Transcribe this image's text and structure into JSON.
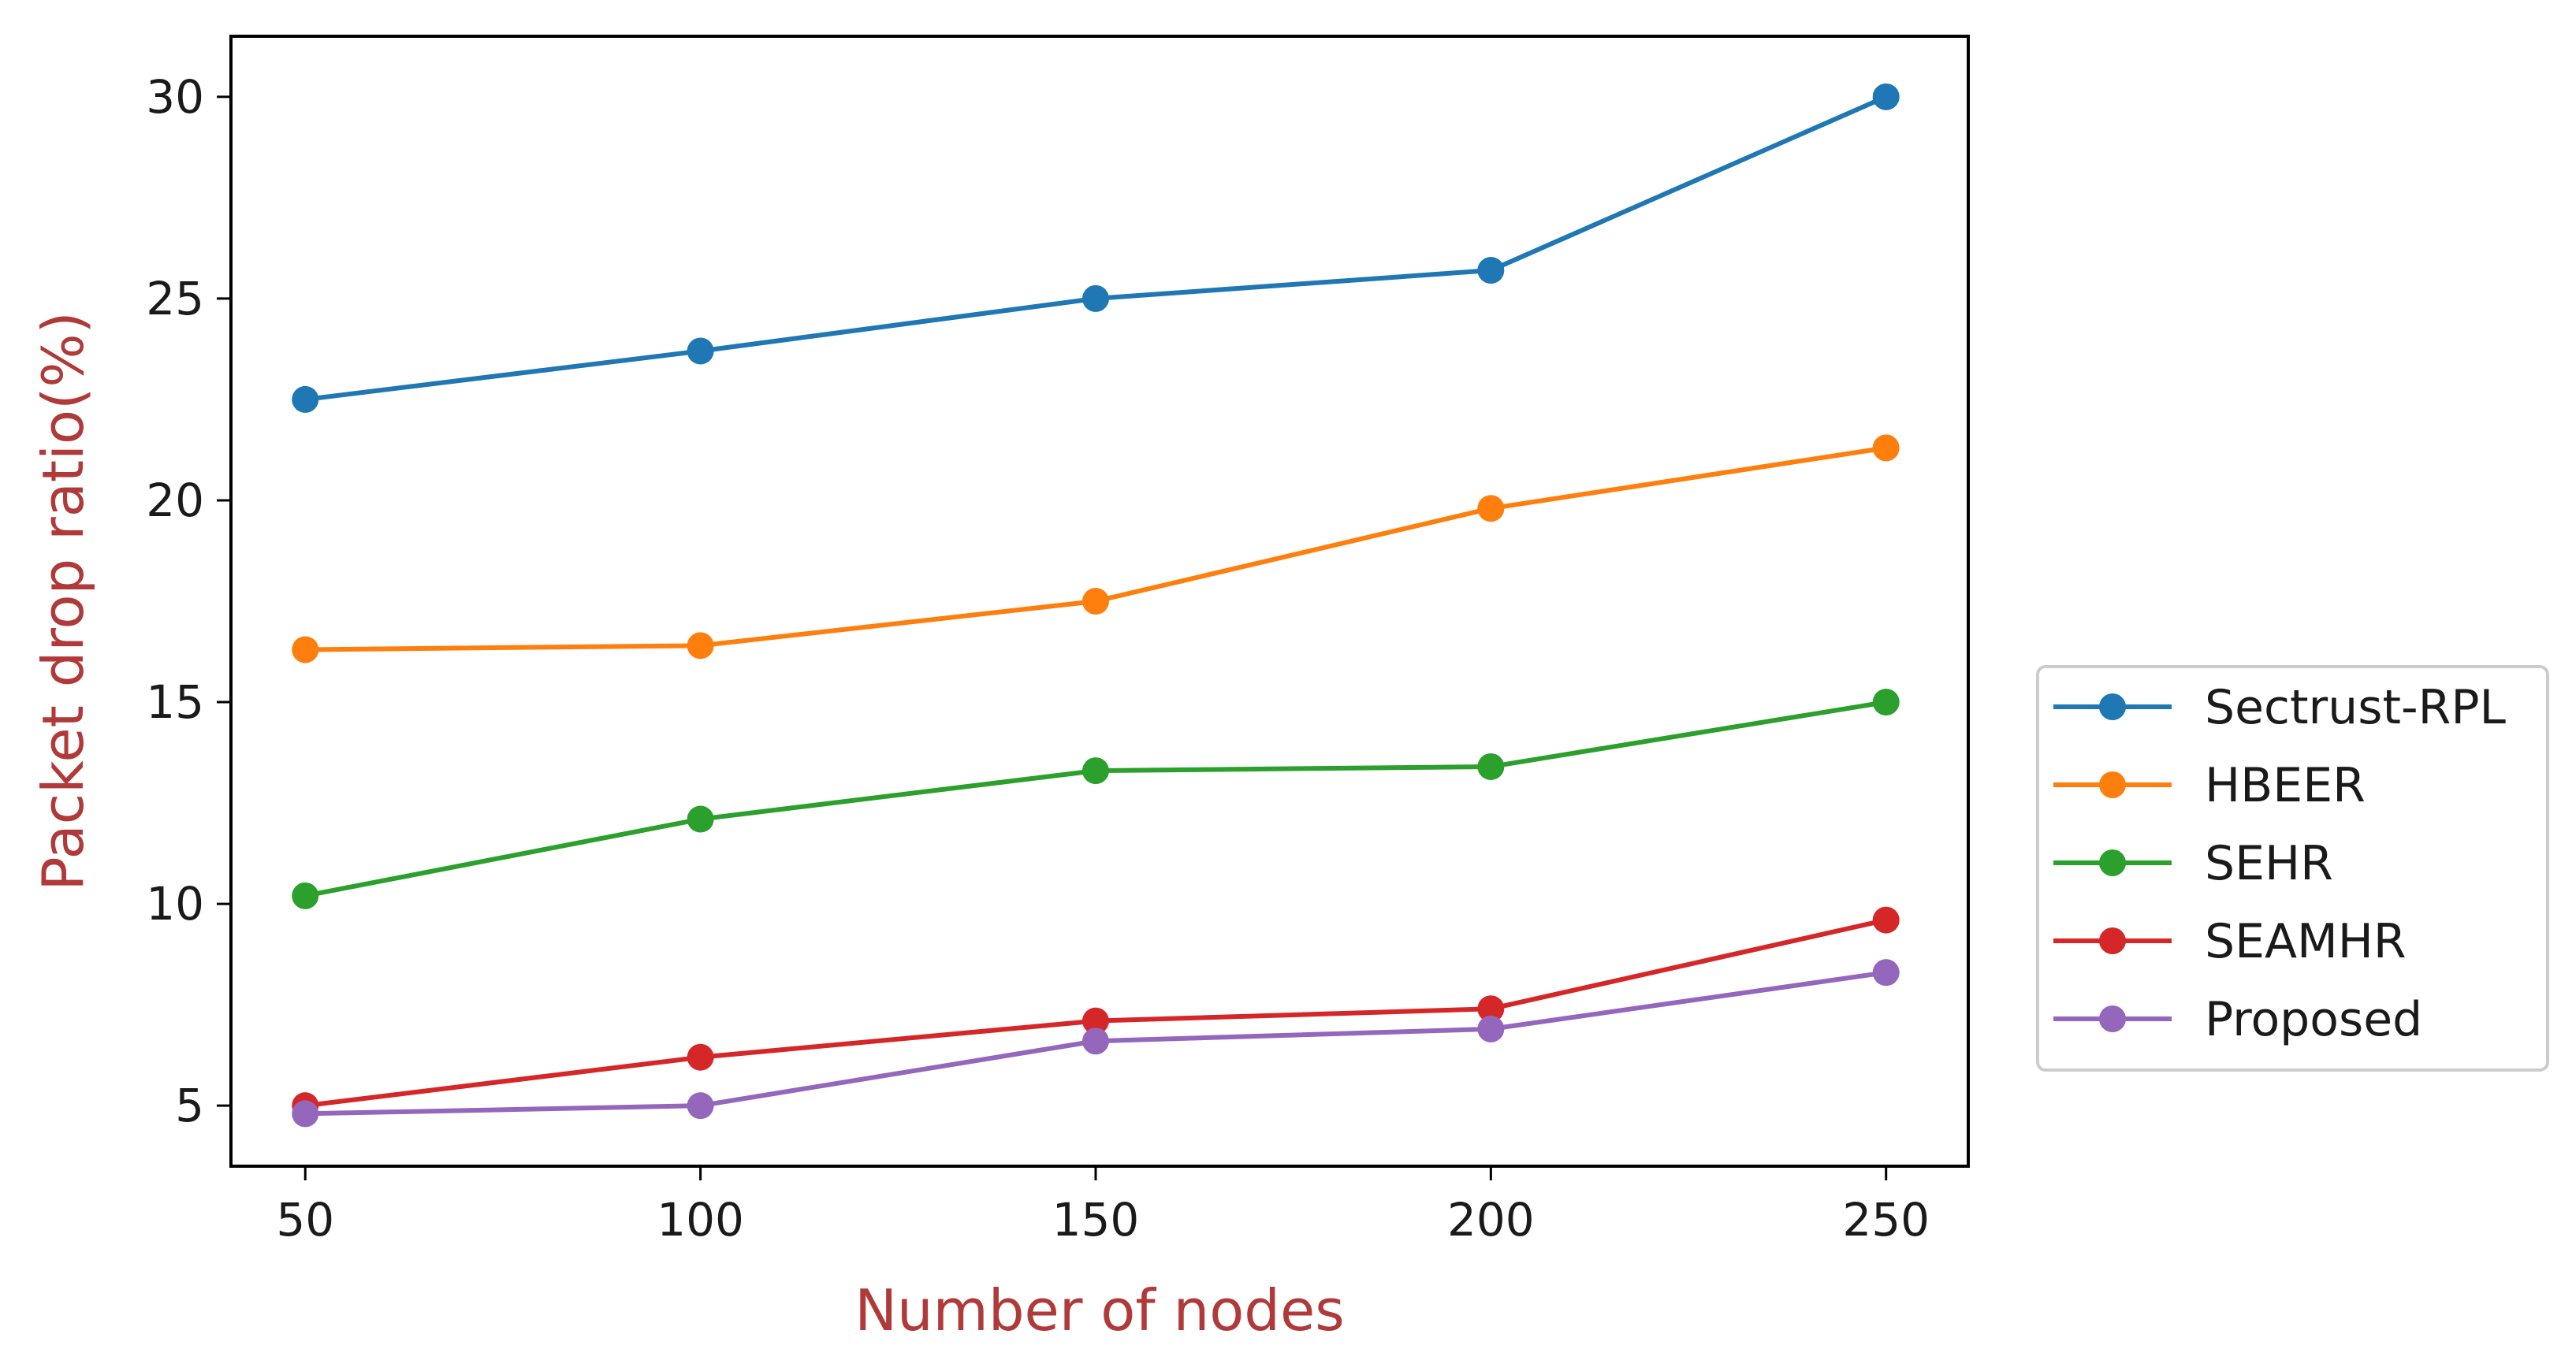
{
  "chart_data": {
    "type": "line",
    "title": "",
    "xlabel": "Number of nodes",
    "ylabel": "Packet drop ratio(%)",
    "x": [
      50,
      100,
      150,
      200,
      250
    ],
    "xlim": [
      40.6,
      260.4
    ],
    "ylim": [
      3.5,
      31.5
    ],
    "xticks": [
      50,
      100,
      150,
      200,
      250
    ],
    "yticks": [
      5,
      10,
      15,
      20,
      25,
      30
    ],
    "grid": false,
    "legend_position": "outside-right",
    "label_color": "#b03a3a",
    "series": [
      {
        "name": "Sectrust-RPL",
        "color": "#1f77b4",
        "values": [
          22.5,
          23.7,
          25.0,
          25.7,
          30.0
        ]
      },
      {
        "name": "HBEER",
        "color": "#ff7f0e",
        "values": [
          16.3,
          16.4,
          17.5,
          19.8,
          21.3
        ]
      },
      {
        "name": "SEHR",
        "color": "#2ca02c",
        "values": [
          10.2,
          12.1,
          13.3,
          13.4,
          15.0
        ]
      },
      {
        "name": "SEAMHR",
        "color": "#d62728",
        "values": [
          5.0,
          6.2,
          7.1,
          7.4,
          9.6
        ]
      },
      {
        "name": "Proposed",
        "color": "#9467bd",
        "values": [
          4.8,
          5.0,
          6.6,
          6.9,
          8.3
        ]
      }
    ]
  }
}
